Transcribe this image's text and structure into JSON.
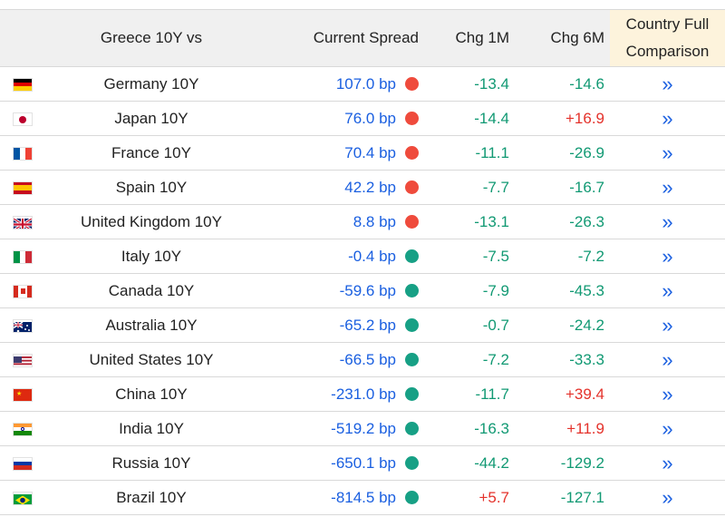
{
  "header": {
    "name_col": "Greece 10Y vs",
    "spread_col": "Current Spread",
    "chg1m_col": "Chg 1M",
    "chg6m_col": "Chg 6M",
    "comparison_col_line1": "Country Full",
    "comparison_col_line2": "Comparison"
  },
  "colors": {
    "spread_text": "#1a5fe0",
    "positive_spread_dot": "#ef4b3c",
    "negative_spread_dot": "#17a085",
    "negative_change": "#119973",
    "positive_change": "#e4322b",
    "comparison_header_bg": "#fdf3dc"
  },
  "comparison_link_glyph": "»",
  "rows": [
    {
      "flag_icon": "germany-flag-icon",
      "name": "Germany 10Y",
      "spread": "107.0 bp",
      "dot": "red",
      "chg1m": "-13.4",
      "chg6m": "-14.6"
    },
    {
      "flag_icon": "japan-flag-icon",
      "name": "Japan 10Y",
      "spread": "76.0 bp",
      "dot": "red",
      "chg1m": "-14.4",
      "chg6m": "+16.9"
    },
    {
      "flag_icon": "france-flag-icon",
      "name": "France 10Y",
      "spread": "70.4 bp",
      "dot": "red",
      "chg1m": "-11.1",
      "chg6m": "-26.9"
    },
    {
      "flag_icon": "spain-flag-icon",
      "name": "Spain 10Y",
      "spread": "42.2 bp",
      "dot": "red",
      "chg1m": "-7.7",
      "chg6m": "-16.7"
    },
    {
      "flag_icon": "united-kingdom-flag-icon",
      "name": "United Kingdom 10Y",
      "spread": "8.8 bp",
      "dot": "red",
      "chg1m": "-13.1",
      "chg6m": "-26.3"
    },
    {
      "flag_icon": "italy-flag-icon",
      "name": "Italy 10Y",
      "spread": "-0.4 bp",
      "dot": "green",
      "chg1m": "-7.5",
      "chg6m": "-7.2"
    },
    {
      "flag_icon": "canada-flag-icon",
      "name": "Canada 10Y",
      "spread": "-59.6 bp",
      "dot": "green",
      "chg1m": "-7.9",
      "chg6m": "-45.3"
    },
    {
      "flag_icon": "australia-flag-icon",
      "name": "Australia 10Y",
      "spread": "-65.2 bp",
      "dot": "green",
      "chg1m": "-0.7",
      "chg6m": "-24.2"
    },
    {
      "flag_icon": "united-states-flag-icon",
      "name": "United States 10Y",
      "spread": "-66.5 bp",
      "dot": "green",
      "chg1m": "-7.2",
      "chg6m": "-33.3"
    },
    {
      "flag_icon": "china-flag-icon",
      "name": "China 10Y",
      "spread": "-231.0 bp",
      "dot": "green",
      "chg1m": "-11.7",
      "chg6m": "+39.4"
    },
    {
      "flag_icon": "india-flag-icon",
      "name": "India 10Y",
      "spread": "-519.2 bp",
      "dot": "green",
      "chg1m": "-16.3",
      "chg6m": "+11.9"
    },
    {
      "flag_icon": "russia-flag-icon",
      "name": "Russia 10Y",
      "spread": "-650.1 bp",
      "dot": "green",
      "chg1m": "-44.2",
      "chg6m": "-129.2"
    },
    {
      "flag_icon": "brazil-flag-icon",
      "name": "Brazil 10Y",
      "spread": "-814.5 bp",
      "dot": "green",
      "chg1m": "+5.7",
      "chg6m": "-127.1"
    }
  ]
}
